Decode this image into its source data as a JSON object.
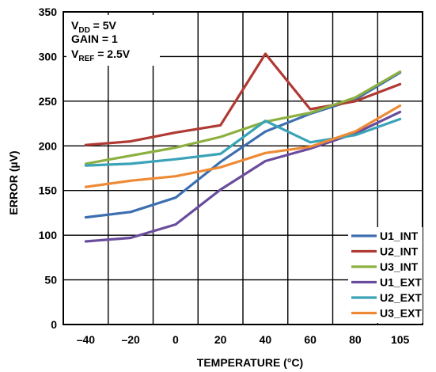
{
  "chart_data": {
    "type": "line",
    "xlabel": "TEMPERATURE (°C)",
    "ylabel": "ERROR (µV)",
    "x": [
      "–40",
      "–20",
      "0",
      "20",
      "40",
      "60",
      "80",
      "105"
    ],
    "ylim": [
      0,
      350
    ],
    "yticks": [
      "0",
      "50",
      "100",
      "150",
      "200",
      "250",
      "300",
      "350"
    ],
    "grid": true,
    "legend_position": "bottom-right",
    "annotation": {
      "vdd": {
        "main": "V",
        "sub": "DD",
        "rest": " = 5V"
      },
      "gain": "GAIN = 1",
      "vref": {
        "main": "V",
        "sub": "REF",
        "rest": " = 2.5V"
      }
    },
    "series": [
      {
        "name": "U1_INT",
        "color": "#3d6fb0",
        "values": [
          120,
          126,
          142,
          182,
          216,
          236,
          252,
          282
        ]
      },
      {
        "name": "U2_INT",
        "color": "#b03a34",
        "values": [
          201,
          205,
          215,
          223,
          303,
          241,
          250,
          269
        ]
      },
      {
        "name": "U3_INT",
        "color": "#8cb040",
        "values": [
          180,
          189,
          198,
          210,
          227,
          237,
          254,
          283
        ]
      },
      {
        "name": "U1_EXT",
        "color": "#6a4c9c",
        "values": [
          93,
          97,
          112,
          151,
          183,
          197,
          214,
          238
        ]
      },
      {
        "name": "U2_EXT",
        "color": "#3aa3b8",
        "values": [
          178,
          180,
          185,
          191,
          228,
          204,
          212,
          230
        ]
      },
      {
        "name": "U3_EXT",
        "color": "#ee8a35",
        "values": [
          154,
          161,
          166,
          176,
          192,
          199,
          216,
          245
        ]
      }
    ]
  }
}
